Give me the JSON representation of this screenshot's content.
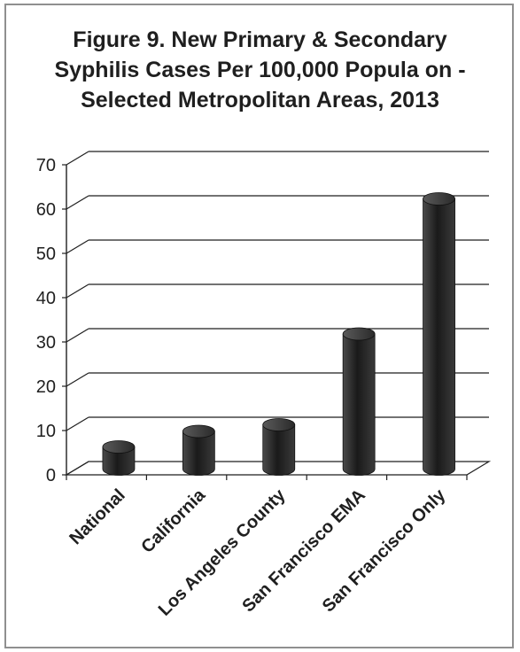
{
  "chart_data": {
    "type": "bar",
    "title_lines": [
      "Figure 9. New Primary & Secondary",
      "Syphilis Cases Per 100,000 Popula   on -",
      "Selected Metropolitan Areas, 2013"
    ],
    "categories": [
      "National",
      "California",
      "Los Angeles County",
      "San Francisco EMA",
      "San Francisco Only"
    ],
    "values": [
      5.0,
      8.5,
      10.0,
      30.5,
      61.0
    ],
    "ylim": [
      0,
      70
    ],
    "yticks": [
      "0",
      "10",
      "20",
      "30",
      "40",
      "50",
      "60",
      "70"
    ],
    "grid": true,
    "bar_color": "#2b2b2b"
  }
}
